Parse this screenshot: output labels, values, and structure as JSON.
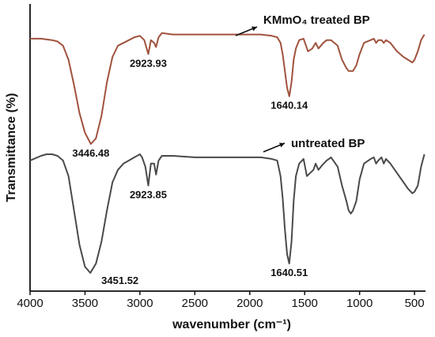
{
  "chart_data": {
    "type": "line",
    "xlabel": "wavenumber (cm⁻¹)",
    "ylabel": "Transmittance (%)",
    "xlim": [
      4000,
      400
    ],
    "x_reversed": true,
    "x_ticks": [
      4000,
      3500,
      3000,
      2500,
      2000,
      1500,
      1000,
      500
    ],
    "y_ticks_shown": false,
    "grid": false,
    "colors": {
      "kmno4": "#a0523d",
      "untreated": "#4a4a4a",
      "axis": "#111111"
    },
    "series": [
      {
        "name": "KMmO₄ treated BP",
        "key": "kmno4",
        "points": [
          [
            4000,
            57.5
          ],
          [
            3900,
            57.5
          ],
          [
            3800,
            57
          ],
          [
            3750,
            56.5
          ],
          [
            3700,
            55
          ],
          [
            3650,
            50
          ],
          [
            3600,
            41
          ],
          [
            3550,
            31
          ],
          [
            3500,
            24
          ],
          [
            3446.48,
            20
          ],
          [
            3400,
            22
          ],
          [
            3350,
            30
          ],
          [
            3300,
            42
          ],
          [
            3250,
            51
          ],
          [
            3200,
            55
          ],
          [
            3100,
            57
          ],
          [
            3050,
            58
          ],
          [
            3000,
            58.5
          ],
          [
            2960,
            57
          ],
          [
            2923.93,
            52
          ],
          [
            2900,
            57
          ],
          [
            2870,
            56
          ],
          [
            2853,
            54.5
          ],
          [
            2830,
            58
          ],
          [
            2800,
            59.5
          ],
          [
            2700,
            59
          ],
          [
            2500,
            59
          ],
          [
            2300,
            59
          ],
          [
            2100,
            59
          ],
          [
            2000,
            59
          ],
          [
            1900,
            59
          ],
          [
            1800,
            58.5
          ],
          [
            1750,
            58
          ],
          [
            1720,
            56
          ],
          [
            1700,
            52
          ],
          [
            1680,
            46
          ],
          [
            1660,
            40
          ],
          [
            1640.14,
            37
          ],
          [
            1620,
            42
          ],
          [
            1600,
            50
          ],
          [
            1580,
            54
          ],
          [
            1550,
            57
          ],
          [
            1510,
            57.5
          ],
          [
            1470,
            53
          ],
          [
            1430,
            54
          ],
          [
            1400,
            56
          ],
          [
            1375,
            54
          ],
          [
            1330,
            56
          ],
          [
            1300,
            57
          ],
          [
            1260,
            57
          ],
          [
            1200,
            55
          ],
          [
            1160,
            50
          ],
          [
            1120,
            47
          ],
          [
            1100,
            46
          ],
          [
            1060,
            46
          ],
          [
            1030,
            48
          ],
          [
            1000,
            52
          ],
          [
            960,
            56
          ],
          [
            900,
            57
          ],
          [
            870,
            57.5
          ],
          [
            850,
            56
          ],
          [
            830,
            57
          ],
          [
            800,
            57
          ],
          [
            780,
            56
          ],
          [
            760,
            57
          ],
          [
            720,
            56
          ],
          [
            660,
            53
          ],
          [
            600,
            51
          ],
          [
            560,
            50
          ],
          [
            520,
            49
          ],
          [
            500,
            50
          ],
          [
            470,
            53
          ],
          [
            440,
            57
          ],
          [
            410,
            59
          ]
        ]
      },
      {
        "name": "untreated BP",
        "key": "untreated",
        "points": [
          [
            4000,
            38
          ],
          [
            3900,
            39.5
          ],
          [
            3850,
            40
          ],
          [
            3800,
            40
          ],
          [
            3750,
            39.5
          ],
          [
            3700,
            38
          ],
          [
            3650,
            33
          ],
          [
            3600,
            22
          ],
          [
            3550,
            11
          ],
          [
            3500,
            4
          ],
          [
            3451.52,
            2
          ],
          [
            3400,
            5
          ],
          [
            3350,
            12
          ],
          [
            3300,
            22
          ],
          [
            3250,
            31
          ],
          [
            3200,
            35
          ],
          [
            3150,
            37
          ],
          [
            3100,
            38
          ],
          [
            3050,
            39
          ],
          [
            3000,
            40
          ],
          [
            2980,
            39
          ],
          [
            2950,
            36
          ],
          [
            2923.85,
            30
          ],
          [
            2900,
            37
          ],
          [
            2870,
            37
          ],
          [
            2853,
            33.5
          ],
          [
            2830,
            38
          ],
          [
            2800,
            39.5
          ],
          [
            2700,
            39.5
          ],
          [
            2500,
            39
          ],
          [
            2300,
            39
          ],
          [
            2100,
            39
          ],
          [
            2000,
            39
          ],
          [
            1900,
            39
          ],
          [
            1800,
            38.5
          ],
          [
            1750,
            38
          ],
          [
            1720,
            33
          ],
          [
            1700,
            26
          ],
          [
            1680,
            16
          ],
          [
            1660,
            8
          ],
          [
            1640.51,
            5
          ],
          [
            1620,
            12
          ],
          [
            1600,
            25
          ],
          [
            1580,
            33
          ],
          [
            1550,
            37
          ],
          [
            1510,
            38.5
          ],
          [
            1480,
            33
          ],
          [
            1450,
            34
          ],
          [
            1420,
            35
          ],
          [
            1400,
            37
          ],
          [
            1375,
            35
          ],
          [
            1340,
            36.5
          ],
          [
            1300,
            38
          ],
          [
            1260,
            39
          ],
          [
            1200,
            36
          ],
          [
            1160,
            30
          ],
          [
            1120,
            25
          ],
          [
            1100,
            22
          ],
          [
            1080,
            21
          ],
          [
            1060,
            22
          ],
          [
            1030,
            25
          ],
          [
            1000,
            32
          ],
          [
            960,
            37
          ],
          [
            900,
            38.5
          ],
          [
            870,
            39
          ],
          [
            850,
            37
          ],
          [
            830,
            38
          ],
          [
            800,
            39
          ],
          [
            780,
            37
          ],
          [
            760,
            38.5
          ],
          [
            720,
            37
          ],
          [
            660,
            34
          ],
          [
            600,
            31
          ],
          [
            560,
            29
          ],
          [
            520,
            27.5
          ],
          [
            500,
            28
          ],
          [
            470,
            30
          ],
          [
            440,
            36
          ],
          [
            410,
            40
          ]
        ]
      }
    ],
    "annotations": [
      {
        "text": "3446.48",
        "x": 3446.48,
        "y": 20,
        "series": "kmno4",
        "placement": "below"
      },
      {
        "text": "2923.93",
        "x": 2923.93,
        "y": 52,
        "series": "kmno4",
        "placement": "below"
      },
      {
        "text": "1640.14",
        "x": 1640.14,
        "y": 37,
        "series": "kmno4",
        "placement": "below"
      },
      {
        "text": "3451.52",
        "x": 3451.52,
        "y": 2,
        "series": "untreated",
        "placement": "right"
      },
      {
        "text": "2923.85",
        "x": 2923.85,
        "y": 30,
        "series": "untreated",
        "placement": "below"
      },
      {
        "text": "1640.51",
        "x": 1640.51,
        "y": 5,
        "series": "untreated",
        "placement": "below"
      }
    ],
    "series_labels": [
      {
        "text": "KMmO₄ treated BP",
        "series": "kmno4",
        "arrow": true
      },
      {
        "text": "untreated BP",
        "series": "untreated",
        "arrow": true
      }
    ]
  }
}
